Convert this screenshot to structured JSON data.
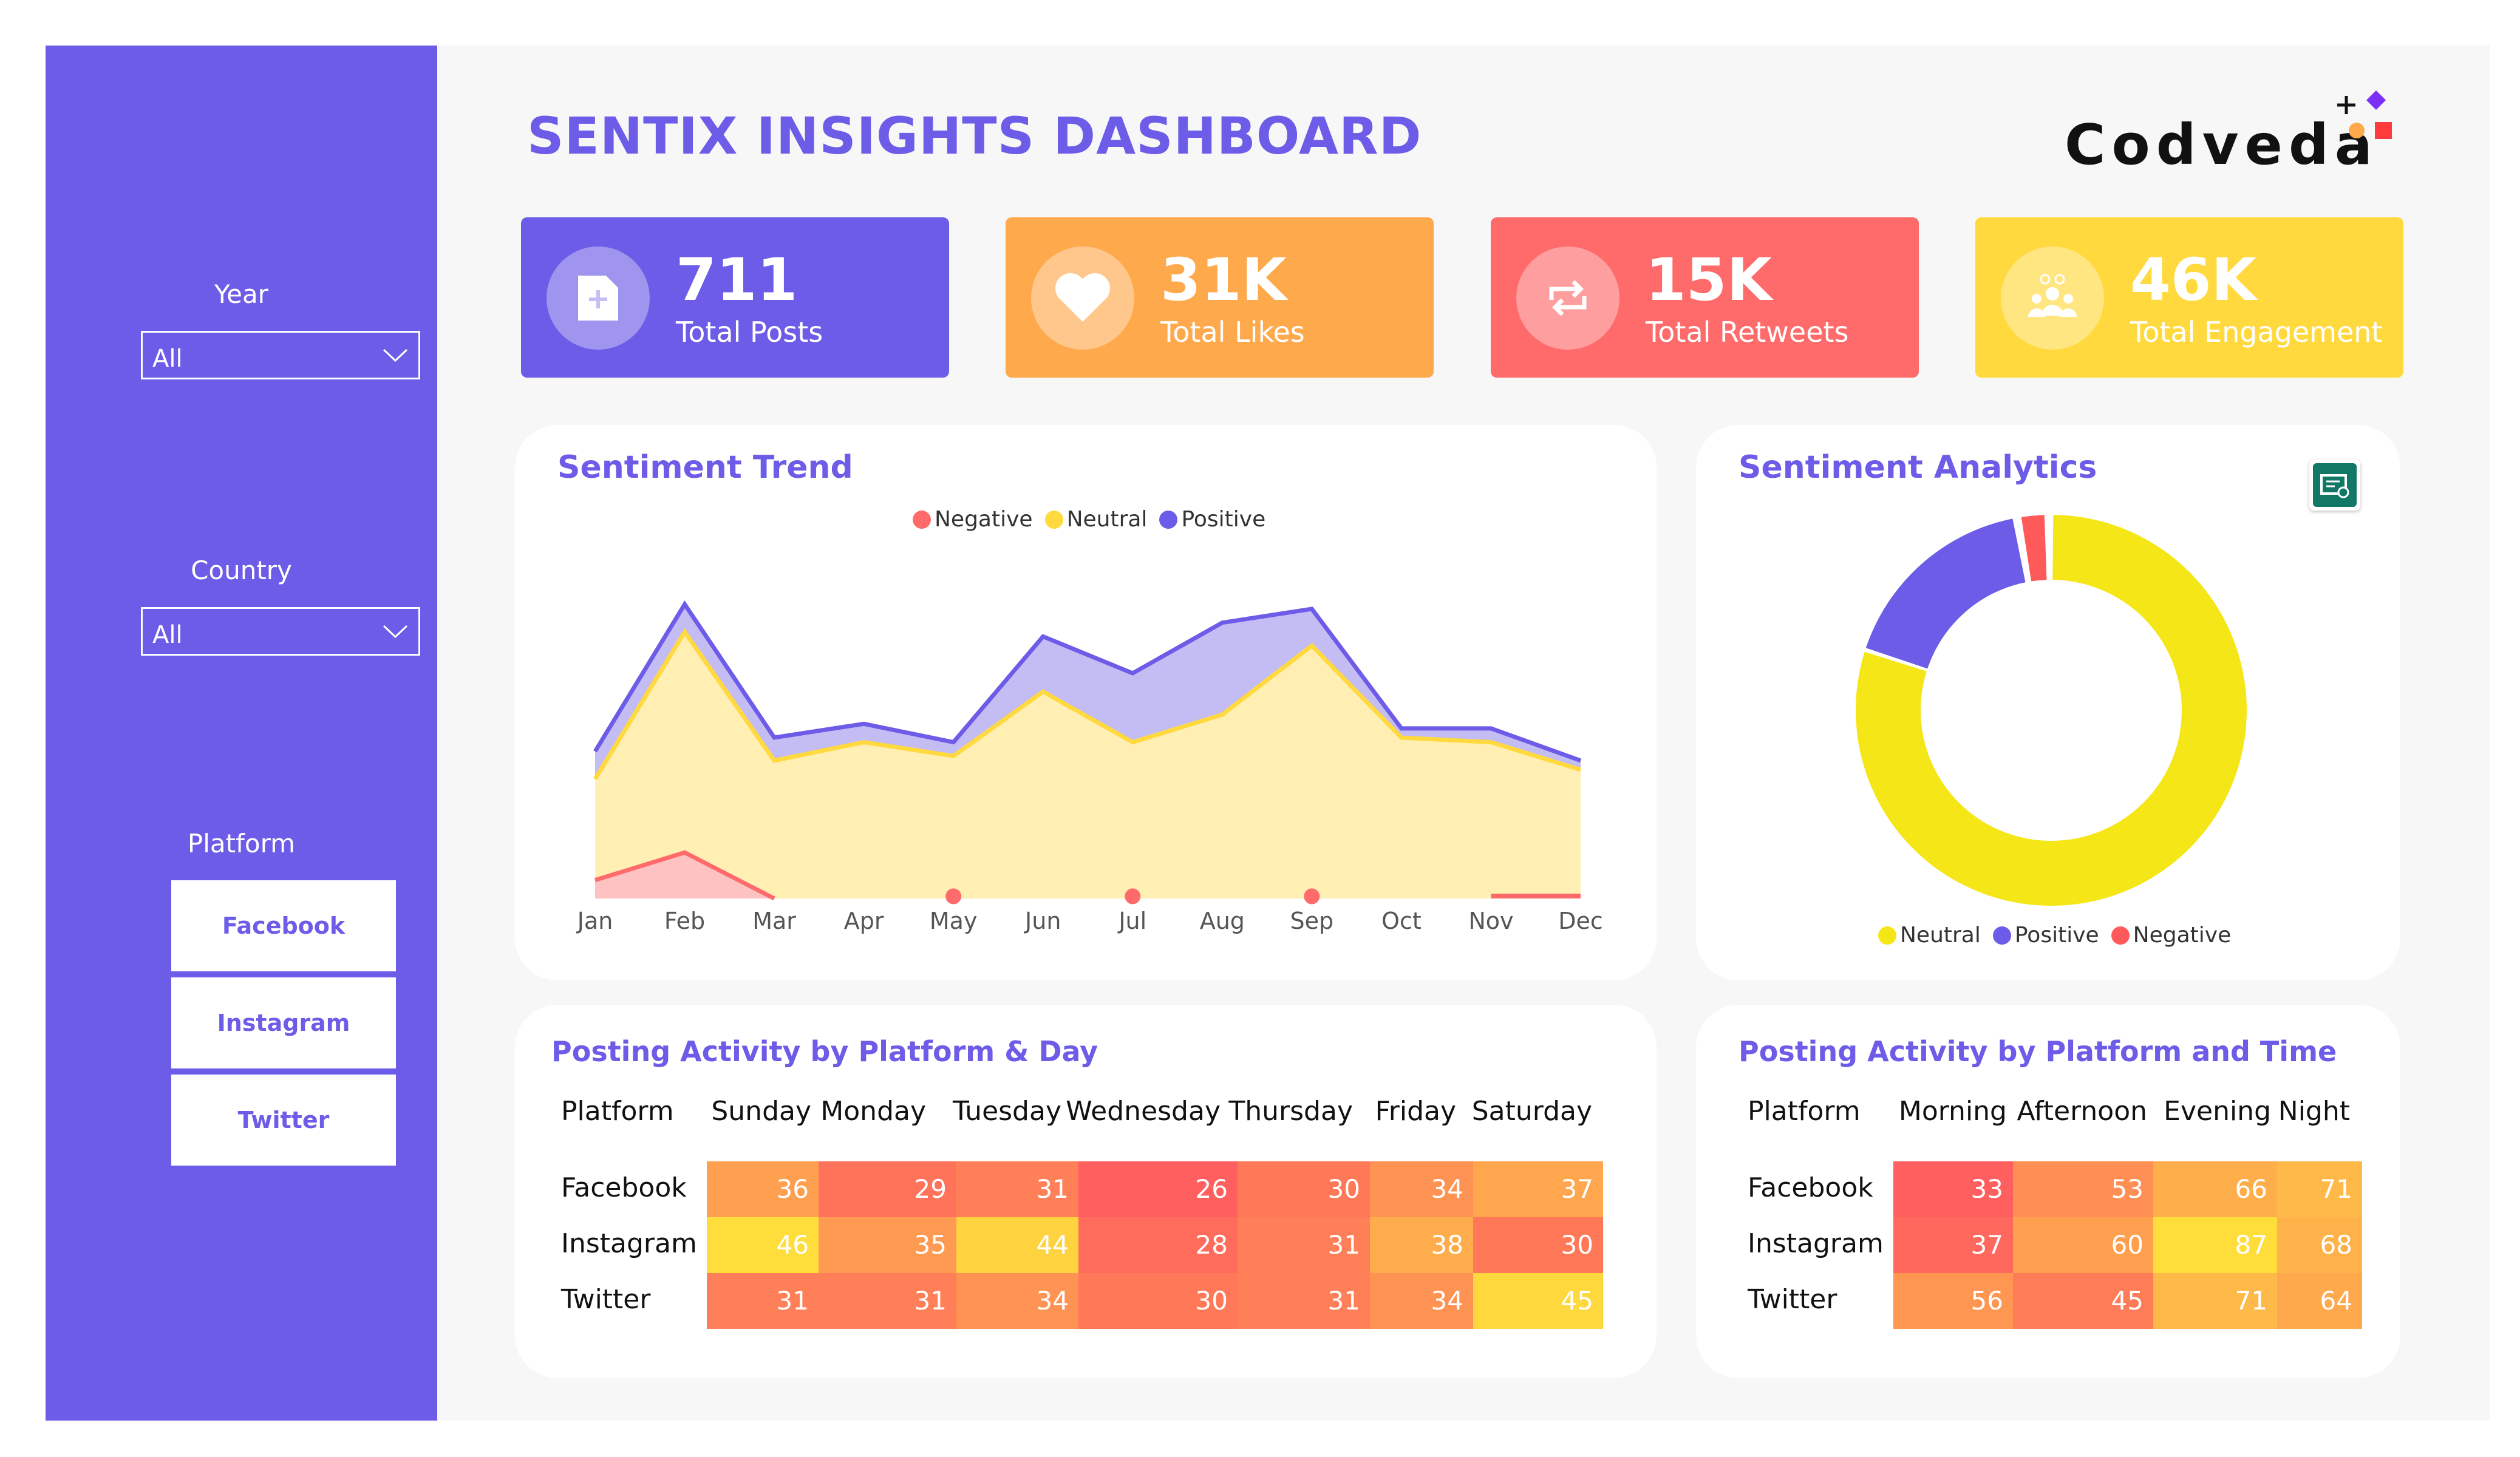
{
  "title": "SENTIX INSIGHTS DASHBOARD",
  "logo": {
    "text": "Codveda"
  },
  "filters": {
    "year": {
      "label": "Year",
      "value": "All"
    },
    "country": {
      "label": "Country",
      "value": "All"
    },
    "platform": {
      "label": "Platform",
      "options": [
        "Facebook",
        "Instagram",
        "Twitter"
      ]
    }
  },
  "kpis": [
    {
      "value": "711",
      "label": "Total Posts",
      "color": "#6c5ce7",
      "icon": "add-post-icon"
    },
    {
      "value": "31K",
      "label": "Total Likes",
      "color": "#ffa94d",
      "icon": "heart-icon"
    },
    {
      "value": "15K",
      "label": "Total Retweets",
      "color": "#ff6b6b",
      "icon": "retweet-icon"
    },
    {
      "value": "46K",
      "label": "Total Engagement",
      "color": "#ffd93d",
      "icon": "people-icon"
    }
  ],
  "sentiment_trend": {
    "title": "Sentiment Trend",
    "legend": [
      "Negative",
      "Neutral",
      "Positive"
    ]
  },
  "sentiment_analytics": {
    "title": "Sentiment Analytics",
    "legend": [
      "Neutral",
      "Positive",
      "Negative"
    ]
  },
  "chart_data": [
    {
      "type": "area",
      "title": "Sentiment Trend",
      "categories": [
        "Jan",
        "Feb",
        "Mar",
        "Apr",
        "May",
        "Jun",
        "Jul",
        "Aug",
        "Sep",
        "Oct",
        "Nov",
        "Dec"
      ],
      "ylim": [
        0,
        70
      ],
      "series": [
        {
          "name": "Negative",
          "color": "#ff6b6b",
          "values": [
            4,
            10,
            0,
            0,
            1,
            0,
            1,
            0,
            1,
            0,
            1,
            1
          ]
        },
        {
          "name": "Neutral",
          "color": "#ffd93d",
          "values": [
            26,
            58,
            30,
            34,
            31,
            45,
            34,
            40,
            55,
            35,
            34,
            28
          ]
        },
        {
          "name": "Positive",
          "color": "#6c5ce7",
          "values": [
            6,
            6,
            5,
            4,
            3,
            12,
            15,
            20,
            8,
            2,
            3,
            2
          ]
        }
      ]
    },
    {
      "type": "pie",
      "title": "Sentiment Analytics",
      "donut": true,
      "series": [
        {
          "name": "Neutral",
          "color": "#f5e617",
          "value": 80
        },
        {
          "name": "Positive",
          "color": "#6c5ce7",
          "value": 17
        },
        {
          "name": "Negative",
          "color": "#ff5a5a",
          "value": 3
        }
      ]
    },
    {
      "type": "heatmap",
      "title": "Posting Activity by Platform & Day",
      "row_header": "Platform",
      "columns": [
        "Sunday",
        "Monday",
        "Tuesday",
        "Wednesday",
        "Thursday",
        "Friday",
        "Saturday"
      ],
      "rows": [
        {
          "label": "Facebook",
          "values": [
            36,
            29,
            31,
            26,
            30,
            34,
            37
          ]
        },
        {
          "label": "Instagram",
          "values": [
            46,
            35,
            44,
            28,
            31,
            38,
            30
          ]
        },
        {
          "label": "Twitter",
          "values": [
            31,
            31,
            34,
            30,
            31,
            34,
            45
          ]
        }
      ]
    },
    {
      "type": "heatmap",
      "title": "Posting Activity by Platform and Time",
      "row_header": "Platform",
      "columns": [
        "Morning",
        "Afternoon",
        "Evening",
        "Night"
      ],
      "rows": [
        {
          "label": "Facebook",
          "values": [
            33,
            53,
            66,
            71
          ]
        },
        {
          "label": "Instagram",
          "values": [
            37,
            60,
            87,
            68
          ]
        },
        {
          "label": "Twitter",
          "values": [
            56,
            45,
            71,
            64
          ]
        }
      ]
    }
  ]
}
